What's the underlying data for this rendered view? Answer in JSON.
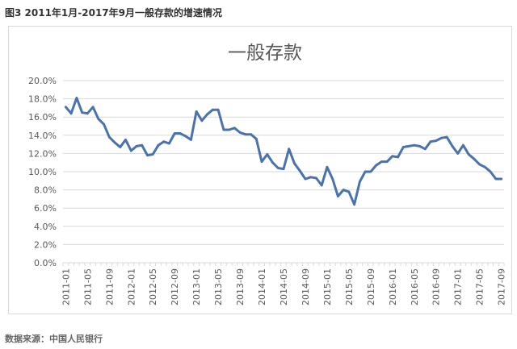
{
  "figure_caption": "图3 2011年1月-2017年9月一般存款的增速情况",
  "source_note": "数据来源：中国人民银行",
  "colors": {
    "line": "#4a72ad",
    "grid": "#d9d9d9",
    "axis_text": "#595959",
    "title": "#595959"
  },
  "chart_data": {
    "type": "line",
    "title": "一般存款",
    "xlabel": "",
    "ylabel": "",
    "ylim": [
      0,
      20
    ],
    "y_ticks": [
      "0.0%",
      "2.0%",
      "4.0%",
      "6.0%",
      "8.0%",
      "10.0%",
      "12.0%",
      "14.0%",
      "16.0%",
      "18.0%",
      "20.0%"
    ],
    "x_tick_labels": [
      "2011-01",
      "2011-05",
      "2011-09",
      "2012-01",
      "2012-05",
      "2012-09",
      "2013-01",
      "2013-05",
      "2013-09",
      "2014-01",
      "2014-05",
      "2014-09",
      "2015-01",
      "2015-05",
      "2015-09",
      "2016-01",
      "2016-05",
      "2016-09",
      "2017-01",
      "2017-05",
      "2017-09"
    ],
    "grid": true,
    "legend": "none",
    "series": [
      {
        "values": [
          17.1,
          16.4,
          18.1,
          16.5,
          16.4,
          17.1,
          15.8,
          15.2,
          13.8,
          13.2,
          12.7,
          13.5,
          12.3,
          12.8,
          12.9,
          11.8,
          11.9,
          12.9,
          13.3,
          13.1,
          14.2,
          14.2,
          13.9,
          13.5,
          16.6,
          15.6,
          16.3,
          16.8,
          16.8,
          14.6,
          14.6,
          14.8,
          14.3,
          14.1,
          14.1,
          13.6,
          11.1,
          11.9,
          11.0,
          10.4,
          10.3,
          12.5,
          10.9,
          10.1,
          9.2,
          9.4,
          9.3,
          8.5,
          10.5,
          9.2,
          7.3,
          8.0,
          7.8,
          6.4,
          8.9,
          10.0,
          10.0,
          10.7,
          11.1,
          11.1,
          11.7,
          11.6,
          12.7,
          12.8,
          12.9,
          12.8,
          12.5,
          13.3,
          13.4,
          13.7,
          13.8,
          12.8,
          12.0,
          12.9,
          11.9,
          11.4,
          10.8,
          10.5,
          10.0,
          9.2,
          9.2
        ]
      }
    ]
  }
}
